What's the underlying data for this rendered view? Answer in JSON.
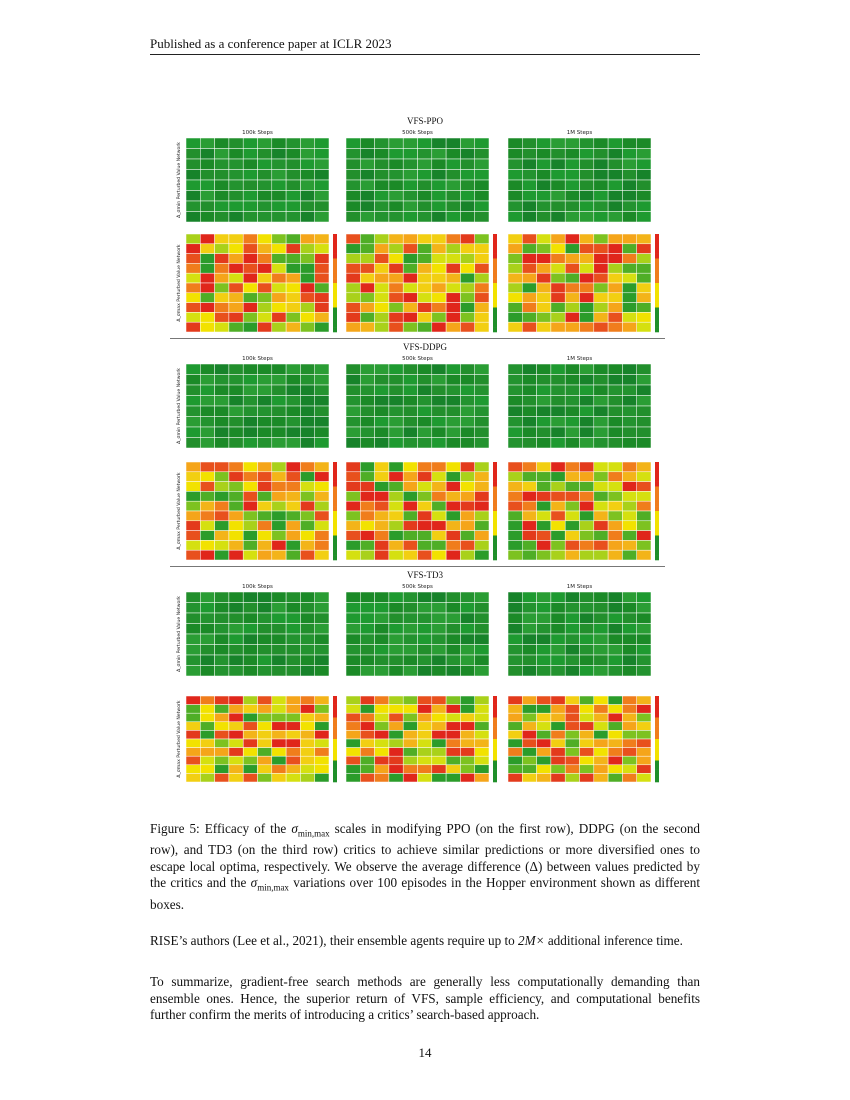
{
  "header": {
    "venue": "Published as a conference paper at ICLR 2023"
  },
  "figure": {
    "step_labels": [
      "100k Steps",
      "500k Steps",
      "1M Steps"
    ],
    "upper_ylabel": "Δ_σmin Perturbed Value Network",
    "lower_ylabel": "Δ_σmax Perturbed Value Network",
    "sections": [
      {
        "title": "VFS-PPO"
      },
      {
        "title": "VFS-DDPG"
      },
      {
        "title": "VFS-TD3"
      }
    ],
    "colors": {
      "low_green": "#1f8f2a",
      "mid_yellow": "#f2e200",
      "high_red": "#e0261b"
    }
  },
  "caption": {
    "label": "Figure 5:",
    "text_1": " Efficacy of the ",
    "sigma": "σ",
    "sub": "min,max",
    "text_2": " scales in modifying PPO (on the first row), DDPG (on the second row), and TD3 (on the third row) critics to achieve similar predictions or more diversified ones to escape local optima, respectively. We observe the average difference (Δ) between values predicted by the critics and the ",
    "text_3": " variations over 100 episodes in the Hopper environment shown as different boxes."
  },
  "body": {
    "p1_a": "RISE’s authors (Lee et al., 2021), their ensemble agents require up to ",
    "p1_math": "2M×",
    "p1_b": " additional inference time.",
    "p2": "To summarize, gradient-free search methods are generally less computationally demanding than ensemble ones. Hence, the superior return of VFS, sample efficiency, and computational benefits further confirm the merits of introducing a critics’ search-based approach."
  },
  "page_number": "14"
}
